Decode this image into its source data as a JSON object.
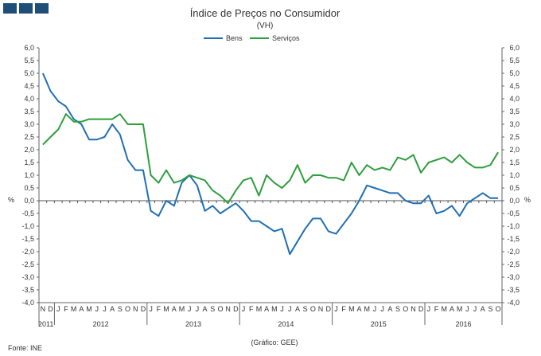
{
  "chart_data": {
    "type": "line",
    "title": "Índice de Preços no Consumidor",
    "subtitle": "(VH)",
    "ylabel_left": "%",
    "ylabel_right": "%",
    "ylim": [
      -4.0,
      6.0
    ],
    "yticks": [
      "6,0",
      "5,5",
      "5,0",
      "4,5",
      "4,0",
      "3,5",
      "3,0",
      "2,5",
      "2,0",
      "1,5",
      "1,0",
      "0,5",
      "0,0",
      "-0,5",
      "-1,0",
      "-1,5",
      "-2,0",
      "-2,5",
      "-3,0",
      "-3,5",
      "-4,0"
    ],
    "month_labels": [
      "N",
      "D",
      "J",
      "F",
      "M",
      "A",
      "M",
      "J",
      "J",
      "A",
      "S",
      "O",
      "N",
      "D",
      "J",
      "F",
      "M",
      "A",
      "M",
      "J",
      "J",
      "A",
      "S",
      "O",
      "N",
      "D",
      "J",
      "F",
      "M",
      "A",
      "M",
      "J",
      "J",
      "A",
      "S",
      "O",
      "N",
      "D",
      "J",
      "F",
      "M",
      "A",
      "M",
      "J",
      "J",
      "A",
      "S",
      "O",
      "N",
      "D",
      "J",
      "F",
      "M",
      "A",
      "M",
      "J",
      "J",
      "A",
      "S",
      "O"
    ],
    "year_labels": [
      "2011",
      "2012",
      "2013",
      "2014",
      "2015",
      "2016"
    ],
    "series": [
      {
        "name": "Bens",
        "color": "#1f6fb4",
        "values": [
          5.0,
          4.3,
          3.9,
          3.7,
          3.2,
          3.0,
          2.4,
          2.4,
          2.5,
          3.0,
          2.6,
          1.6,
          1.2,
          1.2,
          -0.4,
          -0.6,
          0.0,
          -0.2,
          0.7,
          1.0,
          0.6,
          -0.4,
          -0.2,
          -0.5,
          -0.3,
          -0.1,
          -0.4,
          -0.8,
          -0.8,
          -1.0,
          -1.2,
          -1.1,
          -2.1,
          -1.6,
          -1.1,
          -0.7,
          -0.7,
          -1.2,
          -1.3,
          -0.9,
          -0.5,
          0.0,
          0.6,
          0.5,
          0.4,
          0.3,
          0.3,
          0.0,
          -0.1,
          -0.1,
          0.2,
          -0.5,
          -0.4,
          -0.2,
          -0.6,
          -0.1,
          0.1,
          0.3,
          0.1,
          0.1
        ]
      },
      {
        "name": "Serviços",
        "color": "#2e9e3e",
        "values": [
          2.2,
          2.5,
          2.8,
          3.4,
          3.1,
          3.1,
          3.2,
          3.2,
          3.2,
          3.2,
          3.4,
          3.0,
          3.0,
          3.0,
          1.0,
          0.7,
          1.2,
          0.7,
          0.8,
          1.0,
          0.9,
          0.8,
          0.4,
          0.2,
          -0.1,
          0.4,
          0.8,
          0.9,
          0.2,
          1.0,
          0.7,
          0.5,
          0.8,
          1.4,
          0.7,
          1.0,
          1.0,
          0.9,
          0.9,
          0.8,
          1.5,
          1.0,
          1.4,
          1.2,
          1.3,
          1.2,
          1.7,
          1.6,
          1.8,
          1.1,
          1.5,
          1.6,
          1.7,
          1.5,
          1.8,
          1.5,
          1.3,
          1.3,
          1.4,
          1.9
        ]
      }
    ]
  },
  "footer": {
    "source": "Fonte: INE",
    "credit": "(Gráfico: GEE)"
  }
}
